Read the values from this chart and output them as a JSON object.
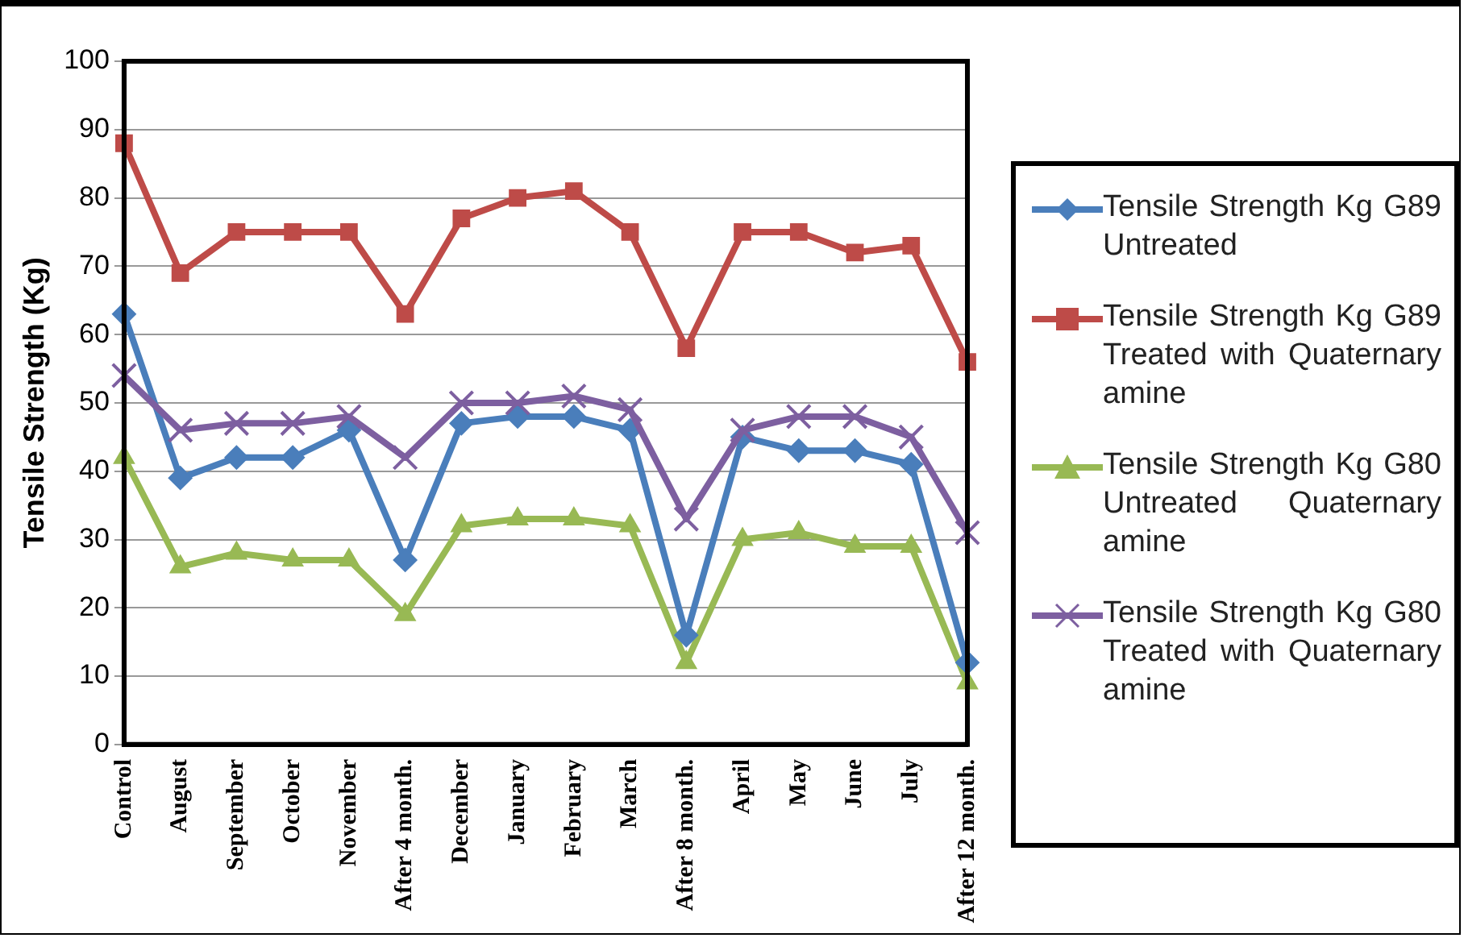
{
  "chart_data": {
    "type": "line",
    "ylabel": "Tensile Strength (Kg)",
    "categories": [
      "Control",
      "August",
      "September",
      "October",
      "November",
      "After 4 month.",
      "December",
      "January",
      "February",
      "March",
      "After 8 month.",
      "April",
      "May",
      "June",
      "July",
      "After 12 month."
    ],
    "ylim": [
      0,
      100
    ],
    "yticks": [
      0,
      10,
      20,
      30,
      40,
      50,
      60,
      70,
      80,
      90,
      100
    ],
    "grid": "y",
    "legend": "right",
    "line_style": "solid",
    "series": [
      {
        "name": "Tensile Strength Kg G89 Untreated",
        "color": "#4a7ebb",
        "marker": "diamond",
        "values": [
          63,
          39,
          42,
          42,
          46,
          27,
          47,
          48,
          48,
          46,
          16,
          45,
          43,
          43,
          41,
          12
        ]
      },
      {
        "name": "Tensile Strength Kg G89 Treated with Quaternary amine",
        "color": "#be4b48",
        "marker": "square",
        "values": [
          88,
          69,
          75,
          75,
          75,
          63,
          77,
          80,
          81,
          75,
          58,
          75,
          75,
          72,
          73,
          56
        ]
      },
      {
        "name": "Tensile Strength Kg G80 Untreated Quaternary amine",
        "color": "#98b954",
        "marker": "triangle",
        "values": [
          42,
          26,
          28,
          27,
          27,
          19,
          32,
          33,
          33,
          32,
          12,
          30,
          31,
          29,
          29,
          9
        ]
      },
      {
        "name": "Tensile Strength Kg G80 Treated with Quaternary amine",
        "color": "#7d5fa0",
        "marker": "cross",
        "values": [
          54,
          46,
          47,
          47,
          48,
          42,
          50,
          50,
          51,
          49,
          33,
          46,
          48,
          48,
          45,
          31
        ]
      }
    ]
  }
}
